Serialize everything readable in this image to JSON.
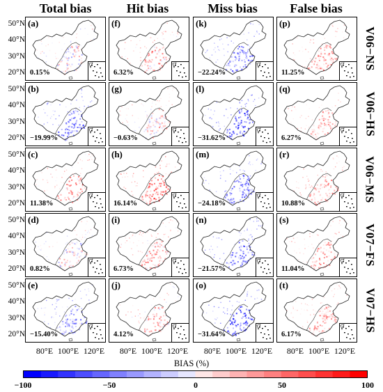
{
  "columns": [
    "Total bias",
    "Hit bias",
    "Miss bias",
    "False bias"
  ],
  "rows": [
    "V06−NS",
    "V06−HS",
    "V06−MS",
    "V07−FS",
    "V07−HS"
  ],
  "lat_labels": [
    "50°N",
    "40°N",
    "30°N",
    "20°N"
  ],
  "lon_labels": [
    "80°E",
    "100°E",
    "120°E"
  ],
  "panels": [
    {
      "label": "(a)",
      "value": "0.15%"
    },
    {
      "label": "(f)",
      "value": "6.32%"
    },
    {
      "label": "(k)",
      "value": "−22.24%"
    },
    {
      "label": "(p)",
      "value": "11.25%"
    },
    {
      "label": "(b)",
      "value": "−19.99%"
    },
    {
      "label": "(g)",
      "value": "−0.63%"
    },
    {
      "label": "(l)",
      "value": "−31.62%"
    },
    {
      "label": "(q)",
      "value": "6.27%"
    },
    {
      "label": "(c)",
      "value": "11.38%"
    },
    {
      "label": "(h)",
      "value": "16.14%"
    },
    {
      "label": "(m)",
      "value": "−24.18%"
    },
    {
      "label": "(r)",
      "value": "10.88%"
    },
    {
      "label": "(d)",
      "value": "0.82%"
    },
    {
      "label": "(i)",
      "value": "6.73%"
    },
    {
      "label": "(n)",
      "value": "−21.57%"
    },
    {
      "label": "(s)",
      "value": "11.04%"
    },
    {
      "label": "(e)",
      "value": "−15.40%"
    },
    {
      "label": "(j)",
      "value": "4.12%"
    },
    {
      "label": "(o)",
      "value": "−31.64%"
    },
    {
      "label": "(t)",
      "value": "6.17%"
    }
  ],
  "colorbar": {
    "title": "BIAS (%)",
    "ticks": [
      "−100",
      "−50",
      "0",
      "50",
      "100"
    ],
    "min": -100,
    "max": 100,
    "colors_negative": [
      "#0000ff",
      "#1a1aff",
      "#3333ff",
      "#4d4dff",
      "#6666ff",
      "#8080ff",
      "#9999ff",
      "#b3b3ff",
      "#ccccff",
      "#e6e6ff"
    ],
    "colors_positive": [
      "#ffe6e6",
      "#ffcccc",
      "#ffb3b3",
      "#ff9999",
      "#ff8080",
      "#ff6666",
      "#ff4d4d",
      "#ff3333",
      "#ff1a1a",
      "#ff0000"
    ]
  }
}
